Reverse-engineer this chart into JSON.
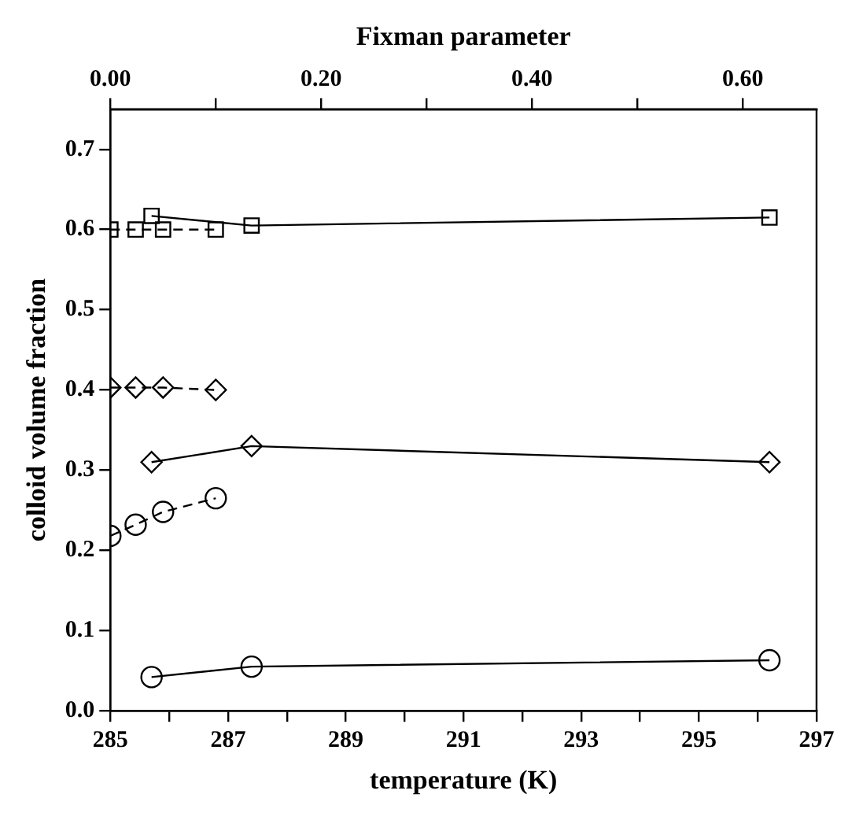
{
  "chart_data": {
    "type": "line",
    "xlabel": "temperature (K)",
    "x2label": "Fixman parameter",
    "ylabel": "colloid volume fraction",
    "xlim": [
      285,
      297
    ],
    "xticks": [
      285,
      {
        "value": 286,
        "label": null
      },
      287,
      {
        "value": 288,
        "label": null
      },
      289,
      {
        "value": 290,
        "label": null
      },
      291,
      {
        "value": 292,
        "label": null
      },
      293,
      {
        "value": 294,
        "label": null
      },
      295,
      {
        "value": 296,
        "label": null
      },
      297
    ],
    "x2lim": [
      0,
      0.67
    ],
    "x2ticks": [
      {
        "value": 0,
        "label": "0.00"
      },
      {
        "value": 0.1,
        "label": null
      },
      {
        "value": 0.2,
        "label": "0.20"
      },
      {
        "value": 0.3,
        "label": null
      },
      {
        "value": 0.4,
        "label": "0.40"
      },
      {
        "value": 0.5,
        "label": null
      },
      {
        "value": 0.6,
        "label": "0.60"
      }
    ],
    "ylim": [
      0,
      0.75
    ],
    "yticks": [
      {
        "value": 0,
        "label": "0.0"
      },
      0.1,
      0.2,
      0.3,
      0.4,
      0.5,
      0.6,
      0.7
    ],
    "grid": false,
    "legend": false,
    "series": [
      {
        "color": "#000000",
        "marker": "square",
        "line_style": "solid",
        "x": [
          285.7,
          287.4,
          296.2
        ],
        "values": [
          0.617,
          0.605,
          0.615
        ]
      },
      {
        "color": "#000000",
        "marker": "diamond",
        "line_style": "solid",
        "x": [
          285.7,
          287.4,
          296.2
        ],
        "values": [
          0.31,
          0.33,
          0.31
        ]
      },
      {
        "color": "#000000",
        "marker": "circle",
        "line_style": "solid",
        "x": [
          285.7,
          287.4,
          296.2
        ],
        "values": [
          0.042,
          0.055,
          0.063
        ]
      },
      {
        "color": "#000000",
        "marker": "square",
        "line_style": "dashed",
        "axis": "x2",
        "x": [
          0,
          0.024,
          0.05,
          0.1
        ],
        "values": [
          0.6,
          0.6,
          0.6,
          0.6
        ]
      },
      {
        "color": "#000000",
        "marker": "diamond",
        "line_style": "dashed",
        "axis": "x2",
        "x": [
          0,
          0.024,
          0.05,
          0.1
        ],
        "values": [
          0.403,
          0.403,
          0.403,
          0.4
        ]
      },
      {
        "color": "#000000",
        "marker": "circle",
        "line_style": "dashed",
        "axis": "x2",
        "x": [
          0,
          0.024,
          0.05,
          0.1
        ],
        "values": [
          0.218,
          0.232,
          0.248,
          0.265
        ]
      }
    ]
  }
}
